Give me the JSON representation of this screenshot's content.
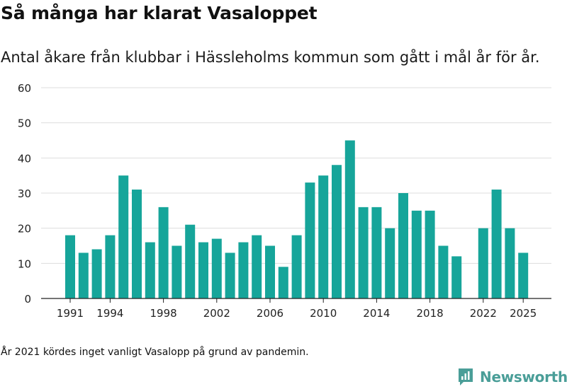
{
  "header": {
    "title": "Så många har klarat Vasaloppet",
    "subtitle": "Antal åkare från klubbar i Hässleholms kommun som gått i mål år för år."
  },
  "footer": {
    "note": "År 2021 kördes inget vanligt Vasalopp på grund av pandemin.",
    "brand": "Newsworthy"
  },
  "colors": {
    "bar": "#16a59a",
    "grid": "#dddddd",
    "axis": "#222222",
    "brand": "#4a9e98"
  },
  "chart_data": {
    "type": "bar",
    "title": "Så många har klarat Vasaloppet",
    "subtitle": "Antal åkare från klubbar i Hässleholms kommun som gått i mål år för år.",
    "xlabel": "",
    "ylabel": "",
    "ylim": [
      0,
      60
    ],
    "yticks": [
      0,
      10,
      20,
      30,
      40,
      50,
      60
    ],
    "xticks": [
      1991,
      1994,
      1998,
      2002,
      2006,
      2010,
      2014,
      2018,
      2022,
      2025
    ],
    "grid": true,
    "categories": [
      1991,
      1992,
      1993,
      1994,
      1995,
      1996,
      1997,
      1998,
      1999,
      2000,
      2001,
      2002,
      2003,
      2004,
      2005,
      2006,
      2007,
      2008,
      2009,
      2010,
      2011,
      2012,
      2013,
      2014,
      2015,
      2016,
      2017,
      2018,
      2019,
      2020,
      2022,
      2023,
      2024,
      2025
    ],
    "values": [
      18,
      13,
      14,
      18,
      35,
      31,
      16,
      26,
      15,
      21,
      16,
      17,
      13,
      16,
      18,
      15,
      9,
      18,
      33,
      35,
      38,
      45,
      26,
      26,
      20,
      30,
      25,
      25,
      15,
      12,
      20,
      31,
      20,
      13
    ]
  }
}
